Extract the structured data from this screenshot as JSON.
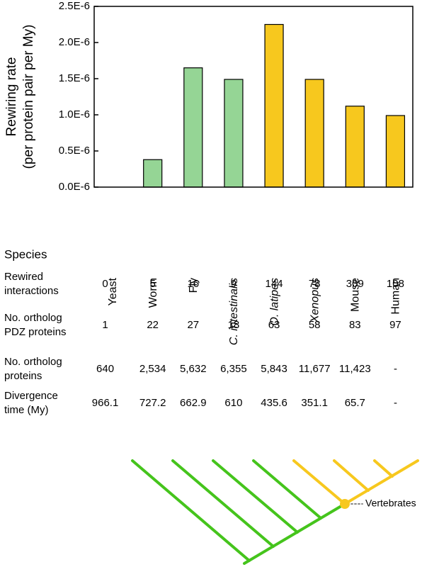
{
  "chart_data": {
    "type": "bar",
    "y_label": [
      "Rewiring rate",
      "(per protein pair per My)"
    ],
    "categories": [
      "Yeast",
      "Worm",
      "Fly",
      "C. intestinalis",
      "O. latipes",
      "Xenopus",
      "Mouse",
      "Human"
    ],
    "values": [
      0,
      3.8e-07,
      1.65e-06,
      1.49e-06,
      2.25e-06,
      1.49e-06,
      1.12e-06,
      9.9e-07
    ],
    "colors": [
      "#95d595",
      "#95d595",
      "#95d595",
      "#95d595",
      "#f7c81e",
      "#f7c81e",
      "#f7c81e",
      "#f7c81e"
    ],
    "italic": [
      false,
      false,
      false,
      true,
      true,
      true,
      false,
      false
    ],
    "ylim": [
      0,
      2.5e-06
    ],
    "yticks": [
      {
        "value": 0,
        "label": "0.0E-6"
      },
      {
        "value": 5e-07,
        "label": "0.5E-6"
      },
      {
        "value": 1e-06,
        "label": "1.0E-6"
      },
      {
        "value": 1.5e-06,
        "label": "1.5E-6"
      },
      {
        "value": 2e-06,
        "label": "2.0E-6"
      },
      {
        "value": 2.5e-06,
        "label": "2.5E-6"
      }
    ]
  },
  "table": {
    "header": "Species",
    "rows": [
      {
        "label": [
          "Rewired",
          "interactions"
        ],
        "cells": [
          "0",
          "5",
          "16",
          "9",
          "144",
          "78",
          "309",
          "108"
        ]
      },
      {
        "label": [
          "No. ortholog",
          "PDZ proteins"
        ],
        "cells": [
          "1",
          "22",
          "27",
          "18",
          "63",
          "58",
          "83",
          "97"
        ]
      },
      {
        "label": [
          "No. ortholog",
          "proteins"
        ],
        "cells": [
          "640",
          "2,534",
          "5,632",
          "6,355",
          "5,843",
          "11,677",
          "11,423",
          "-"
        ]
      },
      {
        "label": [
          "Divergence",
          "time (My)"
        ],
        "cells": [
          "966.1",
          "727.2",
          "662.9",
          "610",
          "435.6",
          "351.1",
          "65.7",
          "-"
        ]
      }
    ]
  },
  "tree": {
    "annotation": "Vertebrates"
  }
}
